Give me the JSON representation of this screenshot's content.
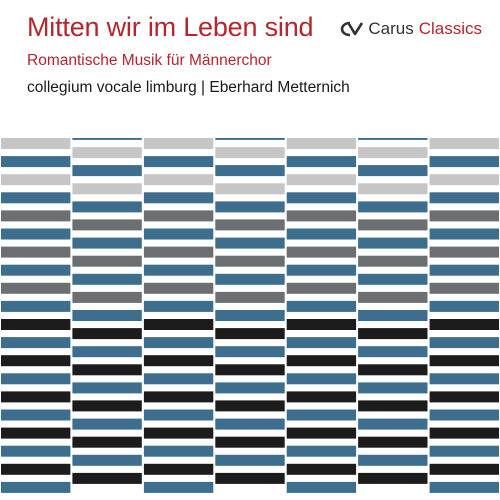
{
  "cover": {
    "title": "Mitten wir im Leben sind",
    "subtitle": "Romantische Musik für Männerchor",
    "performers": "collegium vocale limburg | Eberhard Metternich"
  },
  "brand": {
    "name": "Carus",
    "line": "Classics",
    "logo_icon": "carus-logo-icon",
    "color_text": "#333333",
    "color_accent": "#b5252c"
  },
  "pattern": {
    "colors": {
      "blue": "#3d6e8e",
      "light_gray": "#c6c6c6",
      "dark_gray": "#6c6f72",
      "black": "#1c1c1c"
    }
  }
}
